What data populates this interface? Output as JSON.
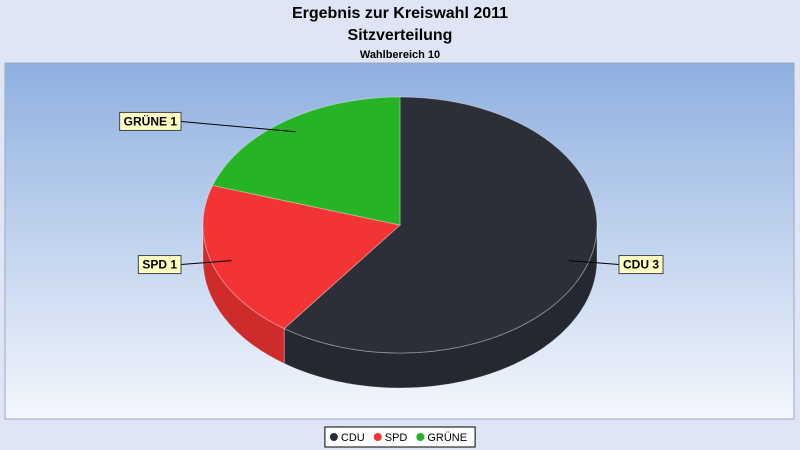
{
  "chart_data": {
    "type": "pie",
    "title": "Ergebnis zur Kreiswahl 2011",
    "subtitle": "Sitzverteilung",
    "caption": "Wahlbereich 10",
    "categories": [
      "CDU",
      "SPD",
      "GRÜNE"
    ],
    "values": [
      3,
      1,
      1
    ],
    "value_labels": [
      "CDU 3",
      "SPD 1",
      "GRÜNE 1"
    ],
    "colors": [
      "#2c2f38",
      "#f23434",
      "#26b426"
    ],
    "legend": "bottom"
  }
}
